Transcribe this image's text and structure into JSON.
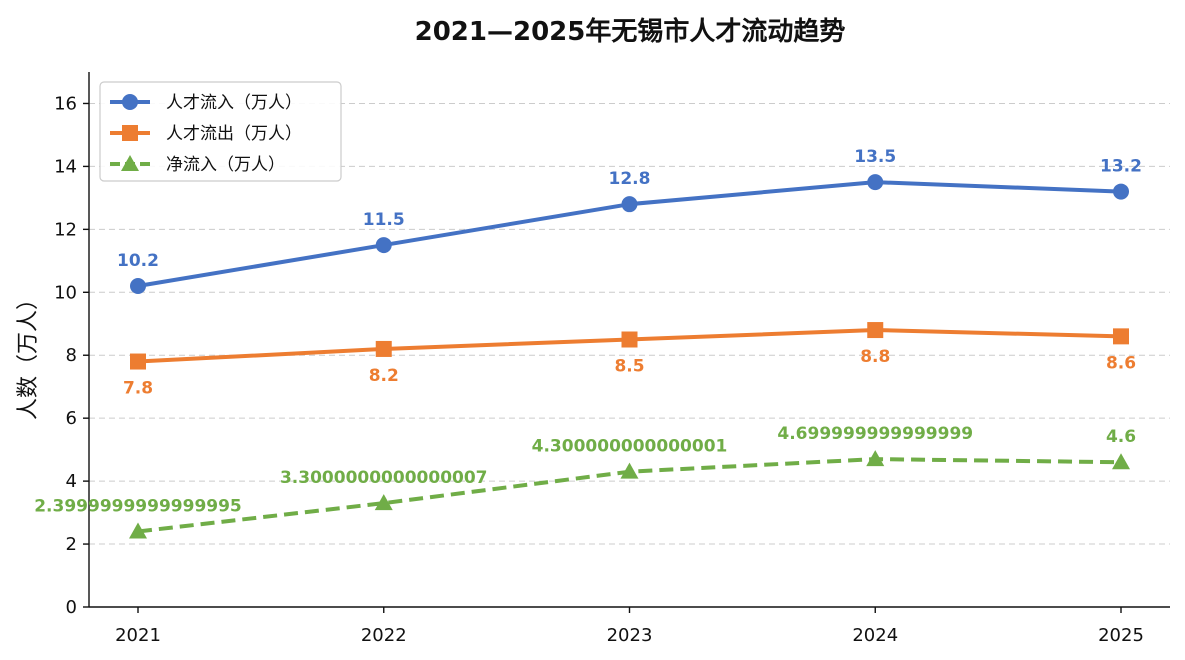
{
  "chart_data": {
    "type": "line",
    "title": "2021—2025年无锡市人才流动趋势",
    "xlabel": "",
    "ylabel": "人数（万人）",
    "categories": [
      "2021",
      "2022",
      "2023",
      "2024",
      "2025"
    ],
    "ylim": [
      0,
      17
    ],
    "yticks": [
      0,
      2,
      4,
      6,
      8,
      10,
      12,
      14,
      16
    ],
    "grid": "horizontal-dashed",
    "legend_position": "top-left",
    "series": [
      {
        "name": "人才流入（万人）",
        "values": [
          10.2,
          11.5,
          12.8,
          13.5,
          13.2
        ],
        "labels": [
          "10.2",
          "11.5",
          "12.8",
          "13.5",
          "13.2"
        ],
        "color": "#4472C4",
        "marker": "circle",
        "dash": false,
        "label_position": "above"
      },
      {
        "name": "人才流出（万人）",
        "values": [
          7.8,
          8.2,
          8.5,
          8.8,
          8.6
        ],
        "labels": [
          "7.8",
          "8.2",
          "8.5",
          "8.8",
          "8.6"
        ],
        "color": "#ED7D31",
        "marker": "square",
        "dash": false,
        "label_position": "below"
      },
      {
        "name": "净流入（万人）",
        "values": [
          2.4,
          3.3,
          4.3,
          4.7,
          4.6
        ],
        "labels": [
          "2.3999999999999995",
          "3.3000000000000007",
          "4.300000000000001",
          "4.699999999999999",
          "4.6"
        ],
        "color": "#70AD47",
        "marker": "triangle",
        "dash": true,
        "label_position": "above"
      }
    ]
  }
}
